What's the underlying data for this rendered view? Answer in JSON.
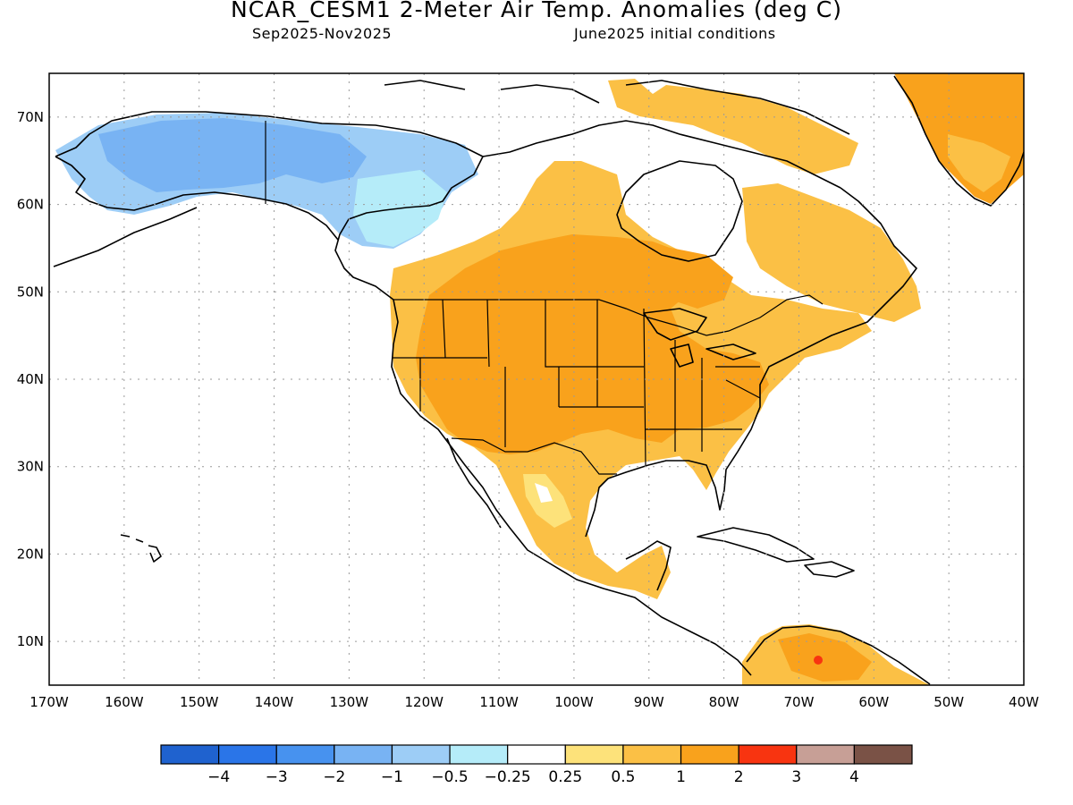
{
  "header": {
    "title": "NCAR_CESM1 2-Meter Air Temp. Anomalies (deg C)",
    "period": "Sep2025-Nov2025",
    "init": "June2025 initial conditions"
  },
  "map": {
    "lon_range": [
      -170,
      -40
    ],
    "lat_range": [
      5,
      75
    ],
    "lon_ticks": [
      "170W",
      "160W",
      "150W",
      "140W",
      "130W",
      "120W",
      "110W",
      "100W",
      "90W",
      "80W",
      "70W",
      "60W",
      "50W",
      "40W"
    ],
    "lat_ticks": [
      "10N",
      "20N",
      "30N",
      "40N",
      "50N",
      "60N",
      "70N"
    ],
    "grid": "dotted"
  },
  "colorbar": {
    "colors": [
      "#1f62cf",
      "#2a75e8",
      "#4792ef",
      "#78b3f3",
      "#9dcdf6",
      "#b5ecf9",
      "#ffffff",
      "#fde27a",
      "#fbc045",
      "#f9a21c",
      "#f83410",
      "#c79f96",
      "#7a5246"
    ],
    "labels": [
      "-4",
      "-3",
      "-2",
      "-1",
      "-0.5",
      "-0.25",
      "0.25",
      "0.5",
      "1",
      "2",
      "3",
      "4"
    ]
  },
  "palette": {
    "land_outline": "#000000",
    "cool": "#9dcdf6",
    "cold": "#78b3f3",
    "coldest": "#4792ef",
    "mild": "#b5ecf9",
    "warm_light": "#fde27a",
    "warm": "#fbc045",
    "hot": "#f9a21c",
    "hottest": "#f83410"
  }
}
